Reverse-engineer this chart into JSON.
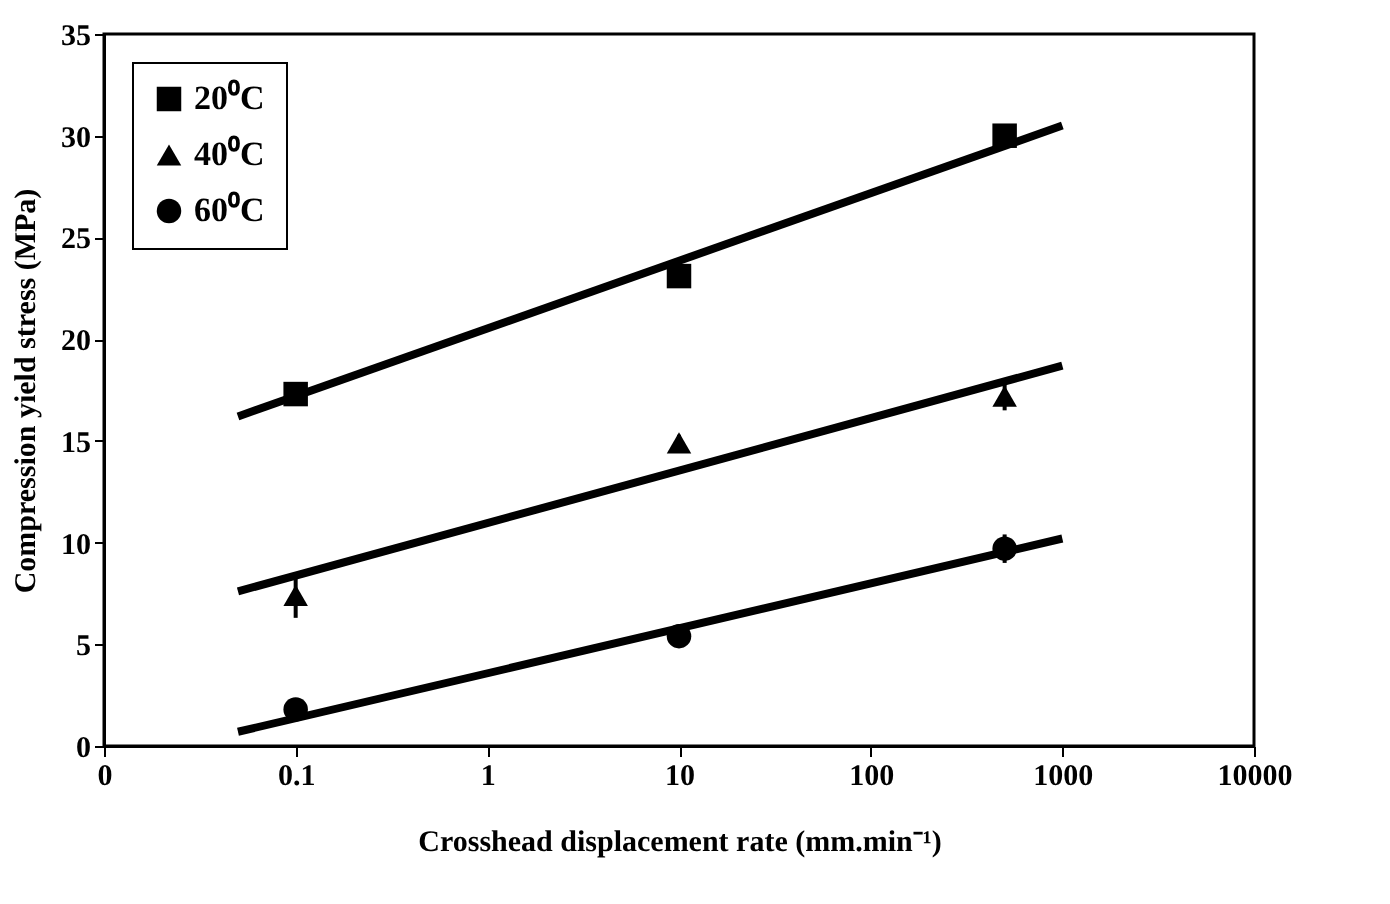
{
  "chart_data": {
    "type": "scatter",
    "xlabel": "Crosshead displacement rate (mm.min⁻¹)",
    "ylabel": "Compression yield stress (MPa)",
    "log": "x",
    "xlim": [
      0.01,
      10000
    ],
    "xticks": [
      {
        "value": 0.01,
        "label": "0"
      },
      0.1,
      1,
      10,
      100,
      1000,
      10000
    ],
    "ylim": [
      0,
      35
    ],
    "yticks": [
      0,
      5,
      10,
      15,
      20,
      25,
      30,
      35
    ],
    "grid": false,
    "legend": "top left",
    "series": [
      {
        "name": "20⁰C",
        "marker": "square",
        "color": "#000000",
        "x": [
          0.1,
          10,
          500
        ],
        "values": [
          17.3,
          23.1,
          30.0
        ],
        "errors": [
          0.3,
          0.4,
          0.4
        ]
      },
      {
        "name": "40⁰C",
        "marker": "triangle",
        "color": "#000000",
        "x": [
          0.1,
          10,
          500
        ],
        "values": [
          7.4,
          14.9,
          17.2
        ],
        "errors": [
          1.1,
          0.4,
          0.7
        ]
      },
      {
        "name": "60⁰C",
        "marker": "circle",
        "color": "#000000",
        "x": [
          0.1,
          10,
          500
        ],
        "values": [
          1.8,
          5.4,
          9.7
        ],
        "errors": [
          0.3,
          0.4,
          0.7
        ]
      },
      {
        "type": "line",
        "color": "#000000",
        "x": [
          0.05,
          1000
        ],
        "values": [
          16.2,
          30.5
        ]
      },
      {
        "type": "line",
        "color": "#000000",
        "x": [
          0.05,
          1000
        ],
        "values": [
          7.6,
          18.7
        ]
      },
      {
        "type": "line",
        "color": "#000000",
        "x": [
          0.05,
          1000
        ],
        "values": [
          0.7,
          10.2
        ]
      }
    ]
  }
}
